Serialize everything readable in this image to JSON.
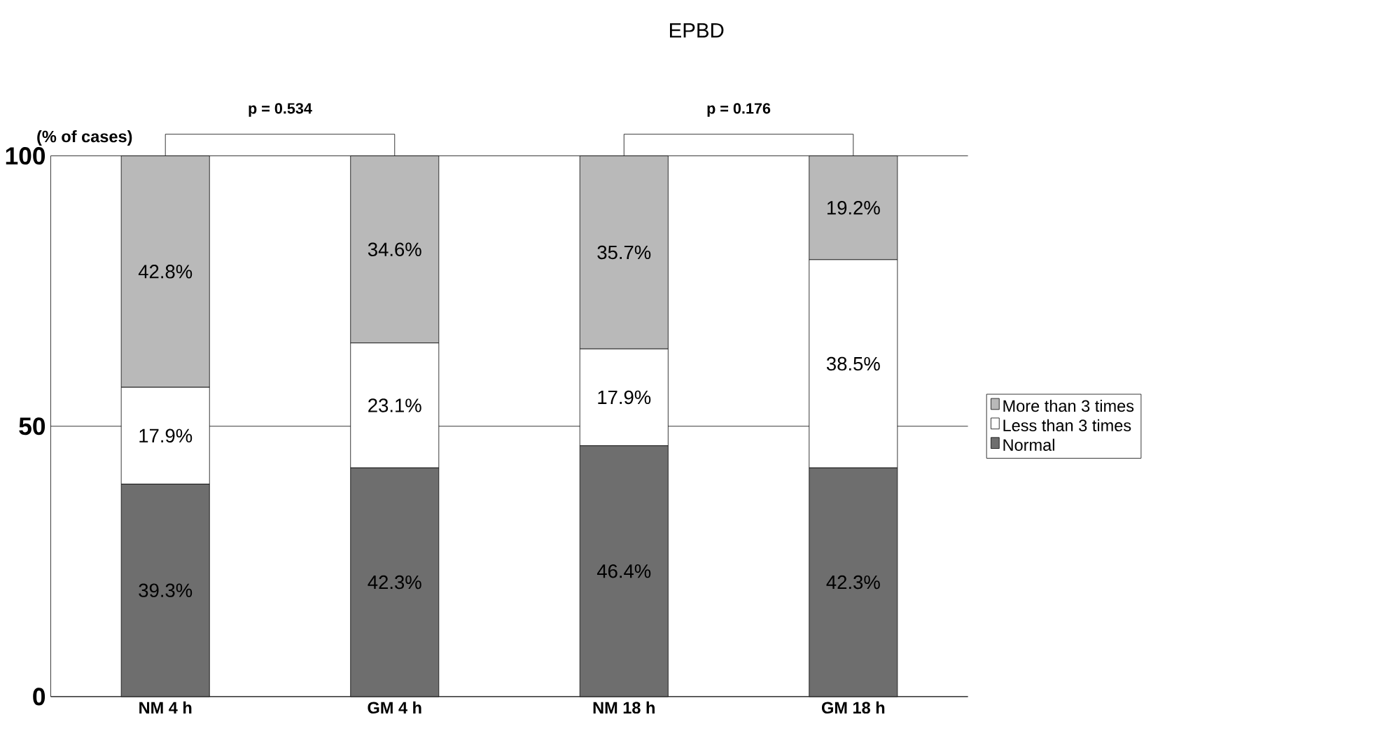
{
  "chart_data": {
    "type": "bar",
    "stacked": true,
    "title": "EPBD",
    "ylabel": "(% of cases)",
    "categories": [
      "NM 4 h",
      "GM 4 h",
      "NM 18 h",
      "GM 18 h"
    ],
    "series": [
      {
        "name": "Normal",
        "color": "#6e6e6e",
        "values": [
          39.3,
          42.3,
          46.4,
          42.3
        ],
        "value_labels": [
          "39.3%",
          "42.3%",
          "46.4%",
          "42.3%"
        ]
      },
      {
        "name": "Less than 3 times",
        "color": "#ffffff",
        "values": [
          17.9,
          23.1,
          17.9,
          38.5
        ],
        "value_labels": [
          "17.9%",
          "23.1%",
          "17.9%",
          "38.5%"
        ]
      },
      {
        "name": "More than 3 times",
        "color": "#b9b9b9",
        "values": [
          42.8,
          34.6,
          35.7,
          19.2
        ],
        "value_labels": [
          "42.8%",
          "34.6%",
          "35.7%",
          "19.2%"
        ]
      }
    ],
    "annotations": [
      "p = 0.534",
      "p = 0.176"
    ],
    "ylim": [
      0,
      100
    ],
    "yticks": [
      0,
      50,
      100
    ],
    "grid": "y",
    "legend": "right"
  }
}
